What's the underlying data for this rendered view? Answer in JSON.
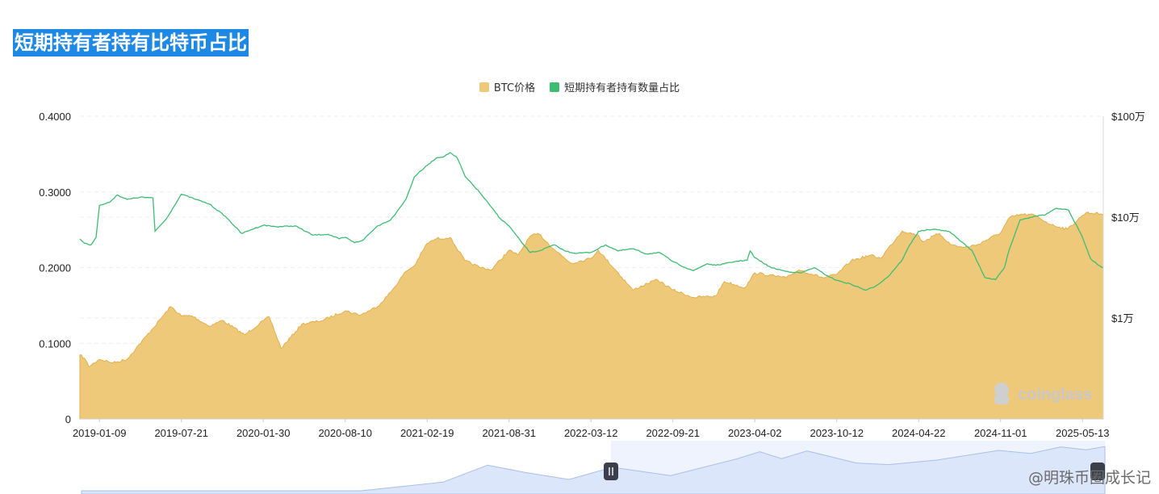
{
  "page": {
    "title": "短期持有者持有比特币占比"
  },
  "watermark": "coinglass",
  "footer_credit": "@明珠币圈成长记",
  "colors": {
    "price_fill": "#efc97a",
    "price_line": "#e2b04c",
    "ratio_line": "#3dbd73",
    "title_bg": "#1e88e5",
    "zoom_fill": "#dbe6fb"
  },
  "chart_data": {
    "type": "area",
    "legend_position": "top-center",
    "grid": true,
    "x_tick_labels": [
      "2019-01-09",
      "2019-07-21",
      "2020-01-30",
      "2020-08-10",
      "2021-02-19",
      "2021-08-31",
      "2022-03-12",
      "2022-09-21",
      "2023-04-02",
      "2023-10-12",
      "2024-04-22",
      "2024-11-01",
      "2025-05-13"
    ],
    "x_range": [
      "2018-11-24",
      "2025-07-01"
    ],
    "y_left": {
      "range": [
        0,
        0.4
      ],
      "ticks": [
        "0",
        "0.1000",
        "0.2000",
        "0.3000",
        "0.4000"
      ]
    },
    "y_right": {
      "scale": "log",
      "range": [
        1000,
        1000000
      ],
      "ticks": [
        {
          "value": 10000,
          "label": "$1万"
        },
        {
          "value": 100000,
          "label": "$10万"
        },
        {
          "value": 1000000,
          "label": "$100万"
        }
      ]
    },
    "series": [
      {
        "name": "BTC价格",
        "axis": "right",
        "points": [
          [
            "2018-11-24",
            4300
          ],
          [
            "2018-12-05",
            4000
          ],
          [
            "2018-12-15",
            3300
          ],
          [
            "2019-01-09",
            3900
          ],
          [
            "2019-02-10",
            3600
          ],
          [
            "2019-03-15",
            3900
          ],
          [
            "2019-04-05",
            5000
          ],
          [
            "2019-05-15",
            7900
          ],
          [
            "2019-06-26",
            13000
          ],
          [
            "2019-07-21",
            10500
          ],
          [
            "2019-08-15",
            10500
          ],
          [
            "2019-09-25",
            8300
          ],
          [
            "2019-10-26",
            9500
          ],
          [
            "2019-12-17",
            6800
          ],
          [
            "2020-01-30",
            9400
          ],
          [
            "2020-02-13",
            10300
          ],
          [
            "2020-03-12",
            5000
          ],
          [
            "2020-04-30",
            8700
          ],
          [
            "2020-06-15",
            9400
          ],
          [
            "2020-08-10",
            11800
          ],
          [
            "2020-09-15",
            10700
          ],
          [
            "2020-10-25",
            13000
          ],
          [
            "2020-11-25",
            18000
          ],
          [
            "2020-12-31",
            29000
          ],
          [
            "2021-01-20",
            33000
          ],
          [
            "2021-02-19",
            55000
          ],
          [
            "2021-03-13",
            61000
          ],
          [
            "2021-04-14",
            63000
          ],
          [
            "2021-05-19",
            37000
          ],
          [
            "2021-06-22",
            32000
          ],
          [
            "2021-07-20",
            30000
          ],
          [
            "2021-08-31",
            47000
          ],
          [
            "2021-09-21",
            42000
          ],
          [
            "2021-10-20",
            65000
          ],
          [
            "2021-11-10",
            68000
          ],
          [
            "2021-12-15",
            48000
          ],
          [
            "2022-01-24",
            35000
          ],
          [
            "2022-03-12",
            39000
          ],
          [
            "2022-03-29",
            47000
          ],
          [
            "2022-05-12",
            29000
          ],
          [
            "2022-06-18",
            19000
          ],
          [
            "2022-08-15",
            24000
          ],
          [
            "2022-09-21",
            19000
          ],
          [
            "2022-11-09",
            16000
          ],
          [
            "2022-12-31",
            16500
          ],
          [
            "2023-01-20",
            23000
          ],
          [
            "2023-03-10",
            20000
          ],
          [
            "2023-04-02",
            28000
          ],
          [
            "2023-06-15",
            25000
          ],
          [
            "2023-07-15",
            30000
          ],
          [
            "2023-09-11",
            25000
          ],
          [
            "2023-10-12",
            27000
          ],
          [
            "2023-11-15",
            37000
          ],
          [
            "2023-12-31",
            42000
          ],
          [
            "2024-01-23",
            39000
          ],
          [
            "2024-03-14",
            73000
          ],
          [
            "2024-04-22",
            66000
          ],
          [
            "2024-05-01",
            57000
          ],
          [
            "2024-06-10",
            69000
          ],
          [
            "2024-07-05",
            54000
          ],
          [
            "2024-08-05",
            50000
          ],
          [
            "2024-09-06",
            53000
          ],
          [
            "2024-11-01",
            70000
          ],
          [
            "2024-11-22",
            99000
          ],
          [
            "2024-12-17",
            106000
          ],
          [
            "2025-01-20",
            105000
          ],
          [
            "2025-02-28",
            84000
          ],
          [
            "2025-04-08",
            76000
          ],
          [
            "2025-05-13",
            104000
          ],
          [
            "2025-05-22",
            111000
          ],
          [
            "2025-07-01",
            107000
          ]
        ]
      },
      {
        "name": "短期持有者持有数量占比",
        "axis": "left",
        "points": [
          [
            "2018-11-24",
            0.238
          ],
          [
            "2018-12-05",
            0.232
          ],
          [
            "2018-12-20",
            0.23
          ],
          [
            "2019-01-01",
            0.24
          ],
          [
            "2019-01-09",
            0.282
          ],
          [
            "2019-02-01",
            0.286
          ],
          [
            "2019-02-20",
            0.296
          ],
          [
            "2019-03-15",
            0.29
          ],
          [
            "2019-04-15",
            0.293
          ],
          [
            "2019-05-15",
            0.292
          ],
          [
            "2019-05-20",
            0.248
          ],
          [
            "2019-06-15",
            0.264
          ],
          [
            "2019-07-21",
            0.297
          ],
          [
            "2019-08-20",
            0.291
          ],
          [
            "2019-09-25",
            0.284
          ],
          [
            "2019-11-01",
            0.268
          ],
          [
            "2019-12-10",
            0.245
          ],
          [
            "2020-01-01",
            0.25
          ],
          [
            "2020-01-30",
            0.256
          ],
          [
            "2020-03-01",
            0.254
          ],
          [
            "2020-04-15",
            0.255
          ],
          [
            "2020-05-25",
            0.243
          ],
          [
            "2020-07-01",
            0.244
          ],
          [
            "2020-07-27",
            0.238
          ],
          [
            "2020-08-10",
            0.24
          ],
          [
            "2020-09-01",
            0.233
          ],
          [
            "2020-09-20",
            0.236
          ],
          [
            "2020-10-25",
            0.255
          ],
          [
            "2020-11-25",
            0.263
          ],
          [
            "2020-12-31",
            0.29
          ],
          [
            "2021-01-20",
            0.32
          ],
          [
            "2021-02-19",
            0.335
          ],
          [
            "2021-03-13",
            0.345
          ],
          [
            "2021-04-01",
            0.347
          ],
          [
            "2021-04-14",
            0.352
          ],
          [
            "2021-05-01",
            0.345
          ],
          [
            "2021-05-20",
            0.32
          ],
          [
            "2021-06-22",
            0.3
          ],
          [
            "2021-07-20",
            0.28
          ],
          [
            "2021-08-10",
            0.265
          ],
          [
            "2021-08-31",
            0.255
          ],
          [
            "2021-09-30",
            0.233
          ],
          [
            "2021-10-20",
            0.22
          ],
          [
            "2021-11-10",
            0.222
          ],
          [
            "2021-12-15",
            0.23
          ],
          [
            "2022-01-10",
            0.222
          ],
          [
            "2022-02-01",
            0.219
          ],
          [
            "2022-03-12",
            0.22
          ],
          [
            "2022-04-15",
            0.23
          ],
          [
            "2022-05-15",
            0.222
          ],
          [
            "2022-06-18",
            0.225
          ],
          [
            "2022-07-20",
            0.218
          ],
          [
            "2022-08-20",
            0.22
          ],
          [
            "2022-09-21",
            0.208
          ],
          [
            "2022-10-20",
            0.2
          ],
          [
            "2022-11-09",
            0.196
          ],
          [
            "2022-12-10",
            0.205
          ],
          [
            "2022-12-31",
            0.203
          ],
          [
            "2023-01-20",
            0.205
          ],
          [
            "2023-02-15",
            0.208
          ],
          [
            "2023-03-15",
            0.21
          ],
          [
            "2023-03-22",
            0.222
          ],
          [
            "2023-04-02",
            0.213
          ],
          [
            "2023-05-10",
            0.2
          ],
          [
            "2023-06-15",
            0.195
          ],
          [
            "2023-07-20",
            0.193
          ],
          [
            "2023-08-20",
            0.2
          ],
          [
            "2023-09-11",
            0.192
          ],
          [
            "2023-10-12",
            0.183
          ],
          [
            "2023-11-15",
            0.178
          ],
          [
            "2023-12-20",
            0.17
          ],
          [
            "2024-01-10",
            0.175
          ],
          [
            "2024-02-10",
            0.188
          ],
          [
            "2024-03-14",
            0.21
          ],
          [
            "2024-04-01",
            0.23
          ],
          [
            "2024-04-22",
            0.248
          ],
          [
            "2024-05-15",
            0.25
          ],
          [
            "2024-06-10",
            0.25
          ],
          [
            "2024-07-05",
            0.247
          ],
          [
            "2024-08-01",
            0.234
          ],
          [
            "2024-08-25",
            0.223
          ],
          [
            "2024-09-25",
            0.187
          ],
          [
            "2024-10-20",
            0.184
          ],
          [
            "2024-11-10",
            0.2
          ],
          [
            "2024-11-22",
            0.225
          ],
          [
            "2024-12-17",
            0.263
          ],
          [
            "2025-01-20",
            0.268
          ],
          [
            "2025-02-15",
            0.27
          ],
          [
            "2025-03-10",
            0.278
          ],
          [
            "2025-04-10",
            0.276
          ],
          [
            "2025-04-20",
            0.265
          ],
          [
            "2025-05-13",
            0.24
          ],
          [
            "2025-06-01",
            0.212
          ],
          [
            "2025-06-20",
            0.203
          ],
          [
            "2025-07-01",
            0.2
          ]
        ]
      }
    ]
  }
}
